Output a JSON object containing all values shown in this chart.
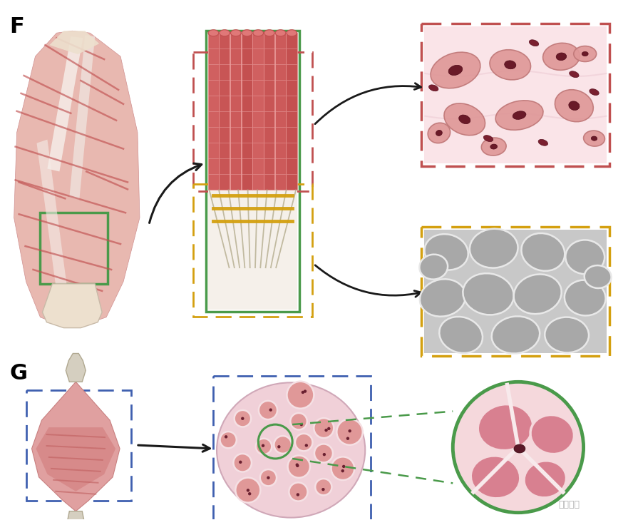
{
  "bg_color": "#ffffff",
  "label_F": "F",
  "label_G": "G",
  "label_fontsize": 22,
  "label_fontweight": "bold",
  "green_box_color": "#4a9a4a",
  "red_dashed_color": "#c05050",
  "yellow_dashed_color": "#d4a010",
  "blue_dashed_color": "#4060b0",
  "green_circle_color": "#4a9a4a",
  "green_dashed_color": "#4a9a4a",
  "arrow_color": "#1a1a1a"
}
